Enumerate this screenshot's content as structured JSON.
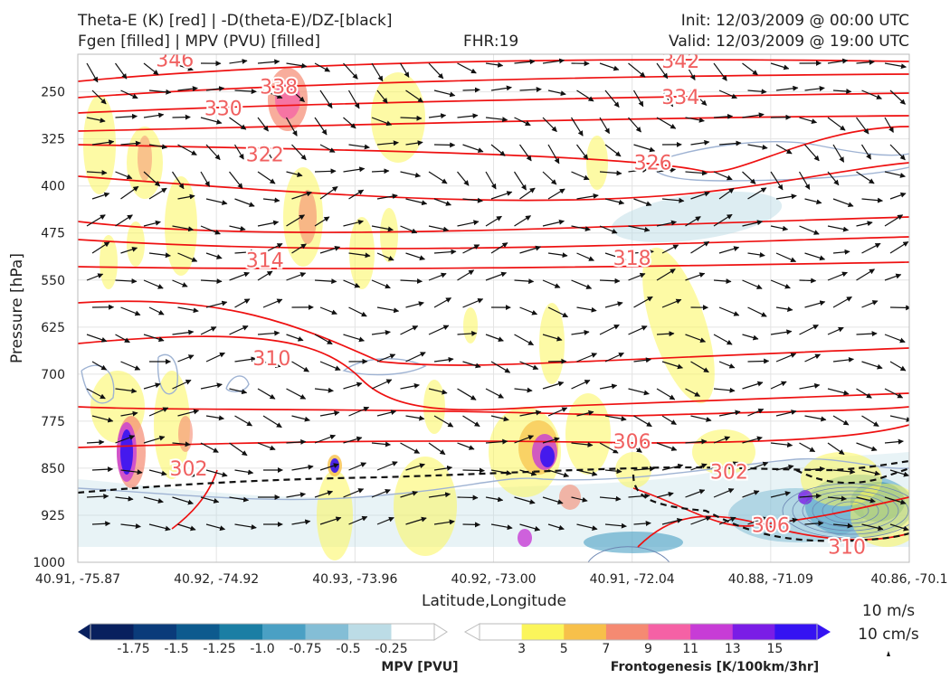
{
  "header": {
    "title_line1": "Theta-E (K) [red] | -D(theta-E)/DZ-[black]",
    "title_line2": "Fgen [filled] | MPV (PVU) [filled]",
    "fhr": "FHR:19",
    "init": "Init: 12/03/2009 @ 00:00 UTC",
    "valid": "Valid: 12/03/2009 @ 19:00 UTC"
  },
  "colors": {
    "theta_e": "#ee1111",
    "theta_e_label": "#f06060",
    "mpv_contour": "#9fb3d3",
    "fgen_ramp": [
      "#fbf55b",
      "#f7c04a",
      "#f58a72",
      "#f561a5",
      "#c73cd6",
      "#7a1de6",
      "#3513f2"
    ],
    "mpv_ramp": [
      "#08205e",
      "#0a3b7a",
      "#0d5a8e",
      "#1b7ea4",
      "#4aa0c4",
      "#84bed6",
      "#bcdce6",
      "#ffffff"
    ]
  },
  "chart_data": {
    "type": "cross-section",
    "ylabel": "Pressure [hPa]",
    "xlabel": "Latitude,Longitude",
    "yticks": [
      250,
      325,
      400,
      475,
      550,
      625,
      700,
      775,
      850,
      925,
      1000
    ],
    "ylim": [
      1000,
      190
    ],
    "xticks": [
      "40.91, -75.87",
      "40.92, -74.92",
      "40.93, -73.96",
      "40.92, -73.00",
      "40.91, -72.04",
      "40.88, -71.09",
      "40.86, -70.1"
    ],
    "grid": true,
    "theta_e_labels": [
      {
        "text": "346",
        "xi": 0.7,
        "p": 198
      },
      {
        "text": "338",
        "xi": 1.45,
        "p": 241
      },
      {
        "text": "342",
        "xi": 4.35,
        "p": 200
      },
      {
        "text": "330",
        "xi": 1.05,
        "p": 276
      },
      {
        "text": "334",
        "xi": 4.35,
        "p": 258
      },
      {
        "text": "322",
        "xi": 1.35,
        "p": 349
      },
      {
        "text": "326",
        "xi": 4.15,
        "p": 362
      },
      {
        "text": "314",
        "xi": 1.35,
        "p": 518
      },
      {
        "text": "318",
        "xi": 4.0,
        "p": 514
      },
      {
        "text": "310",
        "xi": 1.4,
        "p": 674
      },
      {
        "text": "306",
        "xi": 4.0,
        "p": 807
      },
      {
        "text": "302",
        "xi": 0.8,
        "p": 850
      },
      {
        "text": "302",
        "xi": 4.7,
        "p": 855
      },
      {
        "text": "306",
        "xi": 5.0,
        "p": 940
      },
      {
        "text": "310",
        "xi": 5.55,
        "p": 975
      }
    ],
    "fgen_colorbar": {
      "label": "Frontogenesis [K/100km/3hr]",
      "ticks": [
        "3",
        "5",
        "7",
        "9",
        "11",
        "13",
        "15"
      ]
    },
    "mpv_colorbar": {
      "label": "MPV [PVU]",
      "ticks": [
        "-1.75",
        "-1.5",
        "-1.25",
        "-1.0",
        "-0.75",
        "-0.5",
        "-0.25"
      ]
    },
    "wind_key": {
      "top": "10 m/s",
      "bottom": "10 cm/s"
    }
  }
}
